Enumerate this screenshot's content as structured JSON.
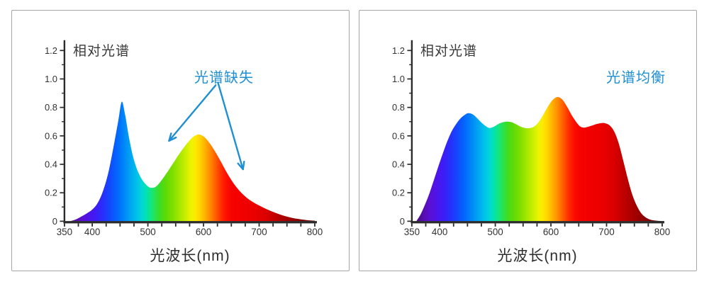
{
  "page": {
    "background": "#ffffff",
    "panel_border_color": "#a6a6a6"
  },
  "colors": {
    "annotation_blue": "#1e8fd2",
    "axis": "#2b2b2b",
    "tick_label": "#333333",
    "title_text": "#3a3a3a"
  },
  "axes": {
    "x_min": 350,
    "x_max": 800,
    "x_tick_step": 25,
    "x_label_values": [
      350,
      400,
      500,
      600,
      700,
      800
    ],
    "y_min": 0,
    "y_max": 1.2,
    "y_major_step": 0.2,
    "y_minor_step": 0.1,
    "y_labels": [
      "0",
      "0.2",
      "0.4",
      "0.6",
      "0.8",
      "1.0",
      "1.2"
    ]
  },
  "spectrum_gradient": [
    [
      350,
      "#3f0a66"
    ],
    [
      362,
      "#4e0c8a"
    ],
    [
      372,
      "#570eb2"
    ],
    [
      382,
      "#5a10d2"
    ],
    [
      392,
      "#5013e6"
    ],
    [
      402,
      "#4419f2"
    ],
    [
      412,
      "#3424f8"
    ],
    [
      422,
      "#2334fb"
    ],
    [
      432,
      "#1349fd"
    ],
    [
      442,
      "#0660fd"
    ],
    [
      452,
      "#0079fb"
    ],
    [
      462,
      "#0093f5"
    ],
    [
      472,
      "#00adef"
    ],
    [
      482,
      "#00c5e7"
    ],
    [
      490,
      "#00d8d2"
    ],
    [
      498,
      "#04e2ac"
    ],
    [
      506,
      "#14e67c"
    ],
    [
      514,
      "#2ae24c"
    ],
    [
      522,
      "#3fdc20"
    ],
    [
      532,
      "#5dda06"
    ],
    [
      544,
      "#7dde00"
    ],
    [
      556,
      "#a3e600"
    ],
    [
      568,
      "#caee00"
    ],
    [
      578,
      "#eef400"
    ],
    [
      586,
      "#ffe800"
    ],
    [
      594,
      "#ffd200"
    ],
    [
      602,
      "#ffb300"
    ],
    [
      610,
      "#ff9300"
    ],
    [
      618,
      "#ff6f00"
    ],
    [
      626,
      "#ff4900"
    ],
    [
      634,
      "#ff2500"
    ],
    [
      642,
      "#fb0d00"
    ],
    [
      652,
      "#f60200"
    ],
    [
      668,
      "#f20000"
    ],
    [
      692,
      "#eb0000"
    ],
    [
      712,
      "#db0000"
    ],
    [
      732,
      "#bd0000"
    ],
    [
      752,
      "#a10000"
    ],
    [
      772,
      "#870000"
    ],
    [
      790,
      "#720000"
    ],
    [
      800,
      "#690000"
    ]
  ],
  "chart_data": [
    {
      "type": "area",
      "title": "相对光谱",
      "xlabel": "光波长(nm)",
      "annotation": {
        "text": "光谱缺失",
        "anchor_x": 637,
        "callout": {
          "vertex": [
            626,
            0.975
          ],
          "tips": [
            [
              538,
              0.565
            ],
            [
              671,
              0.365
            ]
          ]
        }
      },
      "x_range": [
        350,
        800
      ],
      "y_range": [
        0,
        1.2
      ],
      "grid": false,
      "legend": null,
      "points": [
        [
          360,
          0
        ],
        [
          370,
          0.012
        ],
        [
          380,
          0.032
        ],
        [
          390,
          0.055
        ],
        [
          400,
          0.082
        ],
        [
          410,
          0.13
        ],
        [
          420,
          0.22
        ],
        [
          430,
          0.36
        ],
        [
          440,
          0.56
        ],
        [
          447,
          0.71
        ],
        [
          453,
          0.84
        ],
        [
          459,
          0.75
        ],
        [
          466,
          0.59
        ],
        [
          473,
          0.46
        ],
        [
          481,
          0.36
        ],
        [
          490,
          0.29
        ],
        [
          500,
          0.245
        ],
        [
          507,
          0.235
        ],
        [
          515,
          0.245
        ],
        [
          525,
          0.29
        ],
        [
          535,
          0.345
        ],
        [
          545,
          0.405
        ],
        [
          555,
          0.465
        ],
        [
          565,
          0.52
        ],
        [
          575,
          0.568
        ],
        [
          583,
          0.597
        ],
        [
          591,
          0.61
        ],
        [
          598,
          0.602
        ],
        [
          605,
          0.578
        ],
        [
          613,
          0.538
        ],
        [
          622,
          0.482
        ],
        [
          631,
          0.42
        ],
        [
          640,
          0.355
        ],
        [
          650,
          0.29
        ],
        [
          660,
          0.235
        ],
        [
          670,
          0.192
        ],
        [
          680,
          0.158
        ],
        [
          690,
          0.132
        ],
        [
          700,
          0.111
        ],
        [
          715,
          0.082
        ],
        [
          730,
          0.058
        ],
        [
          745,
          0.038
        ],
        [
          760,
          0.023
        ],
        [
          775,
          0.013
        ],
        [
          788,
          0.007
        ],
        [
          800,
          0.004
        ]
      ]
    },
    {
      "type": "area",
      "title": "相对光谱",
      "xlabel": "光波长(nm)",
      "annotation": {
        "text": "光谱均衡",
        "anchor_x": 750,
        "callout": null
      },
      "x_range": [
        350,
        800
      ],
      "y_range": [
        0,
        1.2
      ],
      "grid": false,
      "legend": null,
      "points": [
        [
          358,
          0
        ],
        [
          366,
          0.05
        ],
        [
          374,
          0.12
        ],
        [
          382,
          0.2
        ],
        [
          390,
          0.295
        ],
        [
          398,
          0.39
        ],
        [
          406,
          0.48
        ],
        [
          414,
          0.565
        ],
        [
          422,
          0.635
        ],
        [
          430,
          0.685
        ],
        [
          438,
          0.725
        ],
        [
          446,
          0.75
        ],
        [
          452,
          0.76
        ],
        [
          460,
          0.75
        ],
        [
          468,
          0.722
        ],
        [
          476,
          0.69
        ],
        [
          484,
          0.665
        ],
        [
          490,
          0.655
        ],
        [
          498,
          0.666
        ],
        [
          506,
          0.684
        ],
        [
          514,
          0.696
        ],
        [
          521,
          0.7
        ],
        [
          529,
          0.696
        ],
        [
          537,
          0.682
        ],
        [
          545,
          0.666
        ],
        [
          553,
          0.656
        ],
        [
          561,
          0.654
        ],
        [
          569,
          0.664
        ],
        [
          577,
          0.692
        ],
        [
          585,
          0.74
        ],
        [
          593,
          0.795
        ],
        [
          601,
          0.843
        ],
        [
          608,
          0.868
        ],
        [
          614,
          0.872
        ],
        [
          621,
          0.853
        ],
        [
          629,
          0.805
        ],
        [
          637,
          0.748
        ],
        [
          645,
          0.7
        ],
        [
          652,
          0.668
        ],
        [
          659,
          0.658
        ],
        [
          667,
          0.664
        ],
        [
          675,
          0.674
        ],
        [
          683,
          0.684
        ],
        [
          691,
          0.69
        ],
        [
          698,
          0.688
        ],
        [
          706,
          0.672
        ],
        [
          714,
          0.628
        ],
        [
          722,
          0.545
        ],
        [
          730,
          0.425
        ],
        [
          738,
          0.3
        ],
        [
          746,
          0.19
        ],
        [
          754,
          0.112
        ],
        [
          762,
          0.058
        ],
        [
          770,
          0.028
        ],
        [
          779,
          0.011
        ],
        [
          790,
          0.004
        ],
        [
          800,
          0.001
        ]
      ]
    }
  ]
}
